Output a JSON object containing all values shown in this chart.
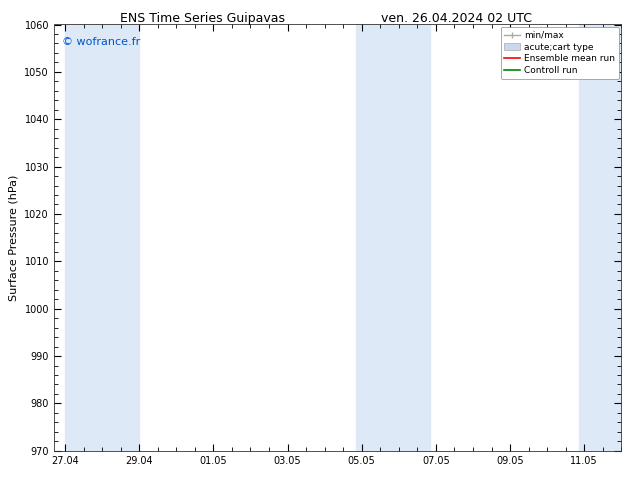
{
  "title_left": "ENS Time Series Guipavas",
  "title_right": "ven. 26.04.2024 02 UTC",
  "ylabel": "Surface Pressure (hPa)",
  "ylim": [
    970,
    1060
  ],
  "yticks": [
    970,
    980,
    990,
    1000,
    1010,
    1020,
    1030,
    1040,
    1050,
    1060
  ],
  "xtick_labels": [
    "27.04",
    "29.04",
    "01.05",
    "03.05",
    "05.05",
    "07.05",
    "09.05",
    "11.05"
  ],
  "xtick_positions": [
    0,
    2,
    4,
    6,
    8,
    10,
    12,
    14
  ],
  "watermark": "© wofrance.fr",
  "watermark_color": "#0055cc",
  "bg_color": "#ffffff",
  "plot_bg_color": "#ffffff",
  "shaded_bands": [
    {
      "xmin": 0,
      "xmax": 2
    },
    {
      "xmin": 7.85,
      "xmax": 9.85
    },
    {
      "xmin": 13.85,
      "xmax": 15.0
    }
  ],
  "shade_color": "#dde9f7",
  "legend_entries": [
    {
      "label": "min/max",
      "color": "#aaaaaa",
      "type": "errorbar"
    },
    {
      "label": "acute;cart type",
      "color": "#c8d8ee",
      "type": "fill"
    },
    {
      "label": "Ensemble mean run",
      "color": "#ff0000",
      "type": "line"
    },
    {
      "label": "Controll run",
      "color": "#008800",
      "type": "line"
    }
  ],
  "xlim": [
    -0.3,
    15.0
  ],
  "x_minor_step": 0.5,
  "title_fontsize": 9,
  "tick_fontsize": 7,
  "ylabel_fontsize": 8
}
